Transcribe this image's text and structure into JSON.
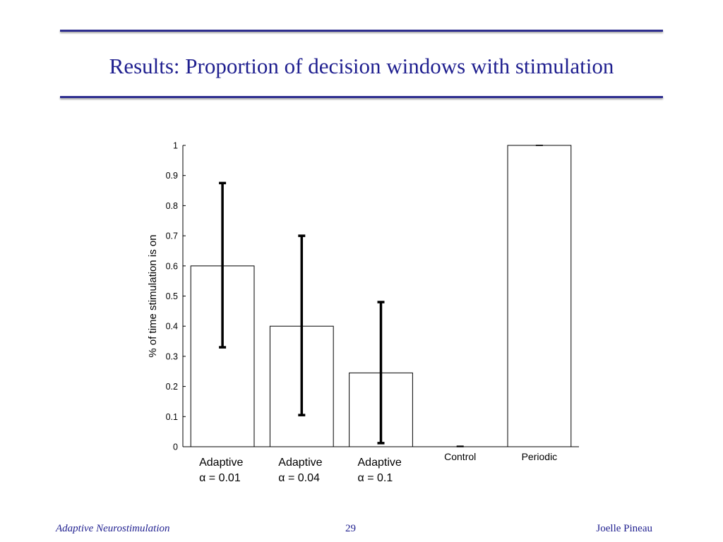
{
  "slide": {
    "title": "Results: Proportion of decision windows with stimulation"
  },
  "footer": {
    "left": "Adaptive Neurostimulation",
    "page_number": "29",
    "right": "Joelle Pineau"
  },
  "colors": {
    "title": "#1f1f8f",
    "rule": "#2e2e8f",
    "bar_fill": "#ffffff",
    "bar_stroke": "#000000",
    "error_bar": "#000000"
  },
  "chart_data": {
    "type": "bar",
    "title": "",
    "xlabel": "",
    "ylabel": "% of time stimulation is on",
    "ylim": [
      0,
      1
    ],
    "yticks": [
      "0",
      "0.1",
      "0.2",
      "0.3",
      "0.4",
      "0.5",
      "0.6",
      "0.7",
      "0.8",
      "0.9",
      "1"
    ],
    "grid": false,
    "categories": [
      [
        "Adaptive",
        "α = 0.01"
      ],
      [
        "Adaptive",
        "α = 0.04"
      ],
      [
        "Adaptive",
        "α = 0.1"
      ],
      [
        "Control"
      ],
      [
        "Periodic"
      ]
    ],
    "values": [
      0.6,
      0.4,
      0.245,
      0.0,
      1.0
    ],
    "error_low": [
      0.33,
      0.105,
      0.012,
      0.0,
      1.0
    ],
    "error_high": [
      0.875,
      0.7,
      0.48,
      0.002,
      1.0
    ]
  }
}
